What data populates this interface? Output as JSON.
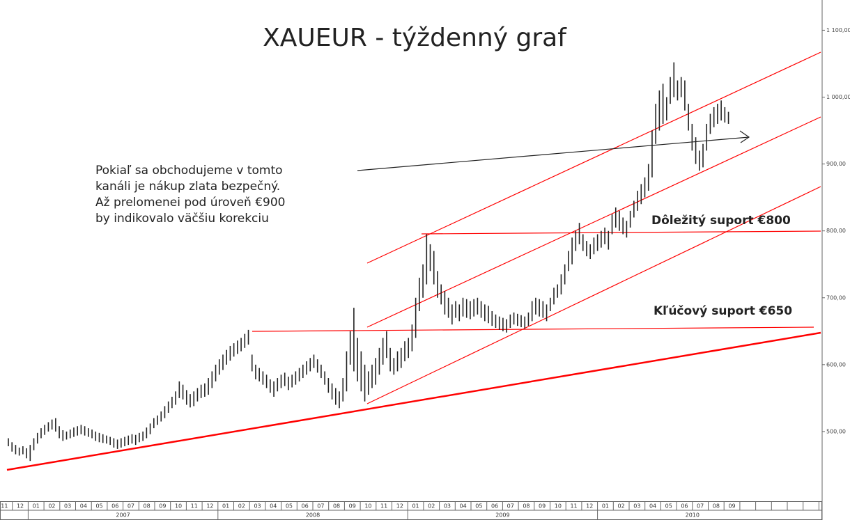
{
  "chart_data": {
    "type": "ohlc",
    "title": "XAUEUR - týždenný graf",
    "annotations": [
      "Pokiaľ sa obchodujeme v tomto",
      "kanáli je nákup zlata bezpečný.",
      "Až prelomenei pod úroveň €900",
      "by indikovalo väčšiu korekciu"
    ],
    "support_labels": [
      "Dôležitý suport €800",
      "Kľúčový suport €650"
    ],
    "months": [
      "11",
      "12",
      "01",
      "02",
      "03",
      "04",
      "05",
      "06",
      "07",
      "08",
      "09",
      "10",
      "11",
      "12",
      "01",
      "02",
      "03",
      "04",
      "05",
      "06",
      "07",
      "08",
      "09",
      "10",
      "11",
      "12",
      "01",
      "02",
      "03",
      "04",
      "05",
      "06",
      "07",
      "08",
      "09",
      "10",
      "11",
      "12",
      "01",
      "02",
      "03",
      "04",
      "05",
      "06",
      "07",
      "08",
      "09"
    ],
    "years": [
      "2007",
      "2008",
      "2009",
      "2010"
    ],
    "color": "#222222",
    "ylim": [
      400,
      1140
    ],
    "yticks": [
      {
        "value": 500,
        "label": "500,00"
      },
      {
        "value": 600,
        "label": "600,00"
      },
      {
        "value": 700,
        "label": "700,00"
      },
      {
        "value": 800,
        "label": "800,00"
      },
      {
        "value": 900,
        "label": "900,00"
      },
      {
        "value": 1000,
        "label": "1 000,00"
      },
      {
        "value": 1100,
        "label": "1 100,00"
      }
    ],
    "high": [
      490,
      484,
      480,
      476,
      478,
      475,
      480,
      490,
      498,
      505,
      510,
      514,
      518,
      520,
      508,
      502,
      500,
      503,
      506,
      508,
      510,
      508,
      505,
      503,
      500,
      498,
      496,
      494,
      492,
      490,
      488,
      490,
      492,
      494,
      496,
      495,
      498,
      500,
      506,
      512,
      520,
      524,
      530,
      538,
      545,
      552,
      560,
      575,
      570,
      562,
      556,
      560,
      565,
      570,
      572,
      580,
      590,
      600,
      608,
      615,
      622,
      628,
      632,
      636,
      640,
      646,
      652,
      615,
      600,
      595,
      590,
      585,
      578,
      575,
      580,
      585,
      588,
      582,
      585,
      590,
      595,
      600,
      605,
      610,
      615,
      608,
      600,
      590,
      580,
      572,
      565,
      560,
      580,
      620,
      650,
      685,
      640,
      620,
      600,
      590,
      600,
      610,
      625,
      640,
      650,
      625,
      610,
      620,
      625,
      635,
      640,
      660,
      700,
      730,
      750,
      795,
      780,
      770,
      740,
      720,
      710,
      700,
      690,
      695,
      690,
      700,
      698,
      695,
      698,
      700,
      695,
      690,
      688,
      680,
      675,
      672,
      670,
      668,
      675,
      678,
      676,
      674,
      672,
      678,
      695,
      700,
      698,
      695,
      690,
      700,
      715,
      720,
      735,
      750,
      770,
      790,
      800,
      812,
      795,
      785,
      780,
      790,
      795,
      800,
      805,
      800,
      825,
      835,
      830,
      820,
      815,
      830,
      845,
      860,
      870,
      880,
      900,
      950,
      990,
      1010,
      1020,
      1000,
      1030,
      1052,
      1025,
      1030,
      1025,
      990,
      960,
      940,
      920,
      930,
      960,
      975,
      985,
      990,
      995,
      985,
      978
    ],
    "low": [
      478,
      470,
      466,
      464,
      466,
      460,
      456,
      472,
      482,
      490,
      495,
      500,
      503,
      500,
      490,
      486,
      488,
      490,
      492,
      494,
      496,
      494,
      492,
      490,
      486,
      484,
      483,
      482,
      480,
      476,
      474,
      476,
      478,
      480,
      482,
      480,
      484,
      486,
      490,
      496,
      505,
      510,
      515,
      520,
      528,
      535,
      540,
      550,
      548,
      540,
      536,
      538,
      545,
      550,
      552,
      555,
      565,
      575,
      585,
      592,
      600,
      606,
      612,
      616,
      620,
      625,
      630,
      590,
      578,
      575,
      570,
      565,
      558,
      552,
      560,
      565,
      568,
      562,
      566,
      570,
      575,
      580,
      585,
      590,
      595,
      588,
      580,
      570,
      558,
      548,
      540,
      535,
      545,
      560,
      600,
      590,
      575,
      560,
      545,
      555,
      565,
      570,
      585,
      600,
      610,
      590,
      585,
      590,
      595,
      605,
      610,
      620,
      640,
      680,
      700,
      720,
      740,
      720,
      700,
      690,
      675,
      670,
      660,
      670,
      665,
      672,
      670,
      668,
      672,
      675,
      670,
      665,
      662,
      658,
      655,
      652,
      650,
      648,
      655,
      660,
      658,
      656,
      654,
      658,
      665,
      675,
      672,
      670,
      665,
      680,
      690,
      700,
      705,
      720,
      740,
      750,
      770,
      780,
      770,
      762,
      758,
      765,
      770,
      775,
      780,
      772,
      795,
      805,
      800,
      795,
      790,
      805,
      820,
      830,
      840,
      850,
      860,
      880,
      930,
      950,
      960,
      965,
      990,
      1000,
      995,
      1000,
      980,
      950,
      920,
      900,
      890,
      895,
      920,
      945,
      955,
      960,
      965,
      962,
      960
    ]
  }
}
